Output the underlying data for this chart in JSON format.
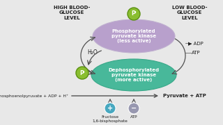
{
  "bg_color": "#e8e8e8",
  "title_left": "HIGH BLOOD-\nGLUCOSE\nLEVEL",
  "title_right": "LOW BLOOD-\nGLUCOSE\nLEVEL",
  "ellipse1_color": "#b8a0cc",
  "ellipse1_text": "Phosphorylated\npyruvate kinase\n(less active)",
  "ellipse2_color": "#48b89a",
  "ellipse2_text": "Dephosphorylated\npyruvate kinase\n(more active)",
  "pi_color": "#8abe30",
  "pi_border": "#5a9010",
  "h2o_text": "H₂O",
  "pi_text": "Pᴵ",
  "left_substrate": "Phosphoenolpyruvate + ADP + H⁺",
  "right_product": "Pyruvate + ATP",
  "adp_text": "▶ ADP",
  "atp_text": "ATP",
  "fructose_text": "Fructose\n1,6-bisphosphate",
  "atp_bottom_text": "ATP",
  "plus_color": "#48a8c0",
  "minus_color": "#9898b0",
  "arrow_color": "#505050",
  "text_color": "#202020"
}
